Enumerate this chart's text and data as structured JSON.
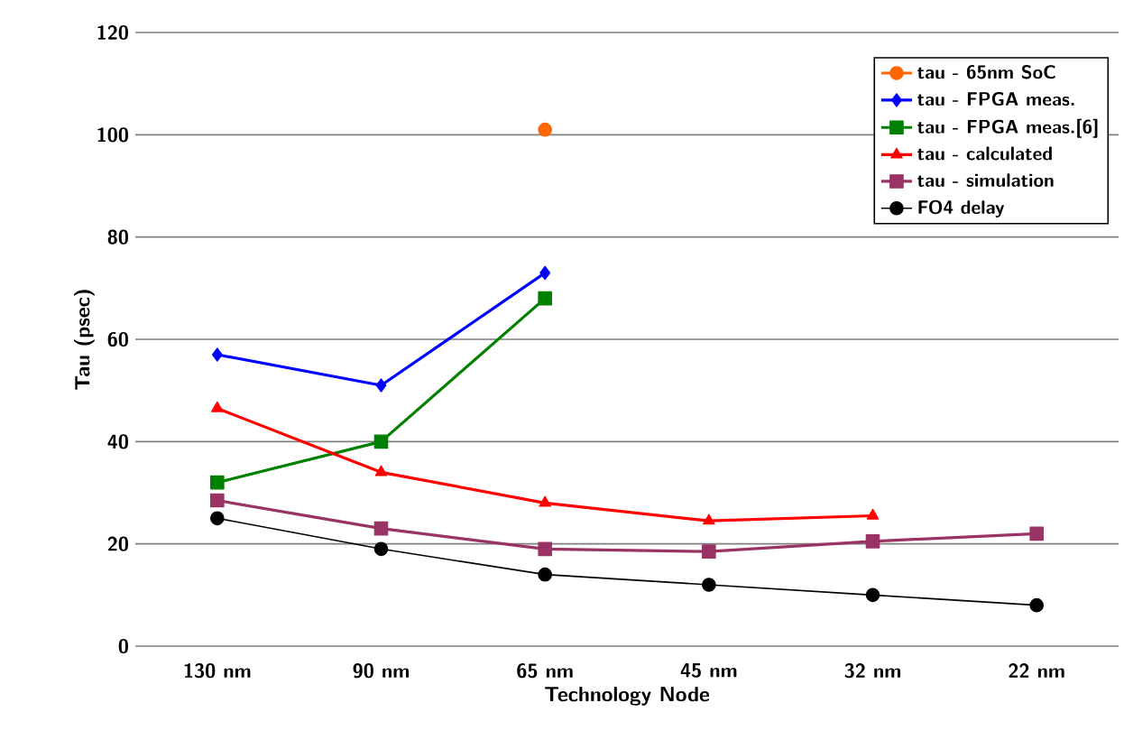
{
  "chart_data": {
    "type": "line",
    "xlabel": "Technology Node",
    "ylabel": "Tau (psec)",
    "categories": [
      "130 nm",
      "90 nm",
      "65 nm",
      "45 nm",
      "32 nm",
      "22 nm"
    ],
    "series": [
      {
        "name": "tau - 65nm SoC",
        "color": "#ff6600",
        "marker": "circle",
        "values": [
          null,
          null,
          101,
          null,
          null,
          null
        ]
      },
      {
        "name": "tau - FPGA meas.",
        "color": "#0000ff",
        "marker": "diamond",
        "values": [
          57,
          51,
          73,
          null,
          null,
          null
        ]
      },
      {
        "name": "tau - FPGA meas.[6]",
        "color": "#008000",
        "marker": "square",
        "values": [
          32,
          40,
          68,
          null,
          null,
          null
        ]
      },
      {
        "name": "tau - calculated",
        "color": "#ff0000",
        "marker": "triangle",
        "values": [
          46.5,
          34,
          28,
          24.5,
          25.5,
          null
        ]
      },
      {
        "name": "tau - simulation",
        "color": "#993366",
        "marker": "square",
        "values": [
          28.5,
          23,
          19,
          18.5,
          20.5,
          22
        ]
      },
      {
        "name": "FO4 delay",
        "color": "#000000",
        "marker": "circle",
        "values": [
          25,
          19,
          14,
          12,
          10,
          8
        ]
      }
    ],
    "ylim": [
      0,
      120
    ],
    "yticks": [
      0,
      20,
      40,
      60,
      80,
      100,
      120
    ],
    "grid": "y",
    "legend": "top right"
  }
}
